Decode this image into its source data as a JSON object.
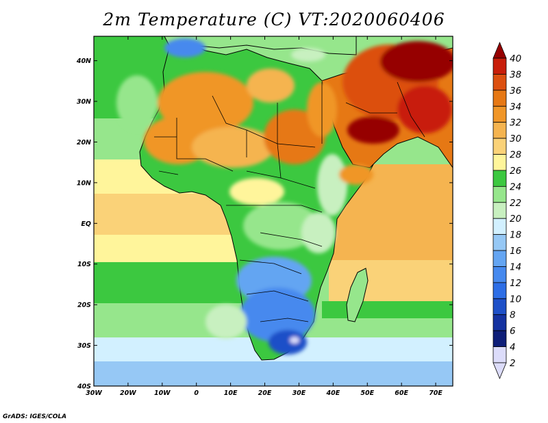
{
  "title": "2m Temperature (C) VT:2020060406",
  "credit": "GrADS: IGES/COLA",
  "chart_data": {
    "type": "heatmap",
    "title": "2m Temperature (C) VT:2020060406",
    "variable": "2m Temperature",
    "units": "C",
    "valid_time": "2020060406",
    "xlim": [
      -30,
      75
    ],
    "ylim": [
      -40,
      46
    ],
    "x_ticks": [
      {
        "value": -30,
        "label": "30W"
      },
      {
        "value": -20,
        "label": "20W"
      },
      {
        "value": -10,
        "label": "10W"
      },
      {
        "value": 0,
        "label": "0"
      },
      {
        "value": 10,
        "label": "10E"
      },
      {
        "value": 20,
        "label": "20E"
      },
      {
        "value": 30,
        "label": "30E"
      },
      {
        "value": 40,
        "label": "40E"
      },
      {
        "value": 50,
        "label": "50E"
      },
      {
        "value": 60,
        "label": "60E"
      },
      {
        "value": 70,
        "label": "70E"
      }
    ],
    "y_ticks": [
      {
        "value": 40,
        "label": "40N"
      },
      {
        "value": 30,
        "label": "30N"
      },
      {
        "value": 20,
        "label": "20N"
      },
      {
        "value": 10,
        "label": "10N"
      },
      {
        "value": 0,
        "label": "EQ"
      },
      {
        "value": -10,
        "label": "10S"
      },
      {
        "value": -20,
        "label": "20S"
      },
      {
        "value": -30,
        "label": "30S"
      },
      {
        "value": -40,
        "label": "40S"
      }
    ],
    "colorbar": {
      "levels": [
        2,
        4,
        6,
        8,
        10,
        12,
        14,
        16,
        18,
        20,
        22,
        24,
        26,
        28,
        30,
        32,
        34,
        36,
        38,
        40
      ],
      "colors": [
        "#dcdcfa",
        "#0e1e78",
        "#1432a0",
        "#1e50c8",
        "#2d6ee6",
        "#4689ee",
        "#64a5f2",
        "#96c8f5",
        "#d2f0ff",
        "#c8f0c0",
        "#96e68c",
        "#3cc840",
        "#fff59b",
        "#fad278",
        "#f5b450",
        "#f09628",
        "#e67814",
        "#dc5010",
        "#c81e0a",
        "#960000",
        "#d2c8f5"
      ]
    },
    "regions": [
      {
        "name": "ocean_south_atlantic",
        "lon": [
          -30,
          10
        ],
        "lat": [
          -40,
          -25
        ],
        "value": 17
      },
      {
        "name": "ocean_tropical_atlantic",
        "lon": [
          -30,
          10
        ],
        "lat": [
          -20,
          10
        ],
        "value": 25
      },
      {
        "name": "ocean_north_atlantic",
        "lon": [
          -30,
          -10
        ],
        "lat": [
          20,
          40
        ],
        "value": 20
      },
      {
        "name": "sahara_west",
        "lon": [
          -15,
          5
        ],
        "lat": [
          15,
          25
        ],
        "value": 30
      },
      {
        "name": "sahara_east",
        "lon": [
          10,
          35
        ],
        "lat": [
          10,
          25
        ],
        "value": 31
      },
      {
        "name": "arabia_gulf",
        "lon": [
          45,
          60
        ],
        "lat": [
          20,
          30
        ],
        "value": 37
      },
      {
        "name": "iran_pakistan",
        "lon": [
          55,
          75
        ],
        "lat": [
          28,
          42
        ],
        "value": 38
      },
      {
        "name": "congo_basin",
        "lon": [
          10,
          30
        ],
        "lat": [
          -5,
          5
        ],
        "value": 22
      },
      {
        "name": "east_african_highlands",
        "lon": [
          33,
          40
        ],
        "lat": [
          -5,
          12
        ],
        "value": 18
      },
      {
        "name": "southern_africa_interior",
        "lon": [
          15,
          33
        ],
        "lat": [
          -33,
          -18
        ],
        "value": 12
      },
      {
        "name": "lesotho",
        "lon": [
          27,
          30
        ],
        "lat": [
          -31,
          -28
        ],
        "value": 4
      },
      {
        "name": "indian_ocean_tropical",
        "lon": [
          40,
          75
        ],
        "lat": [
          -20,
          15
        ],
        "value": 28
      },
      {
        "name": "indian_ocean_south",
        "lon": [
          40,
          75
        ],
        "lat": [
          -40,
          -30
        ],
        "value": 17
      },
      {
        "name": "madagascar",
        "lon": [
          43,
          50
        ],
        "lat": [
          -25,
          -12
        ],
        "value": 21
      }
    ]
  }
}
